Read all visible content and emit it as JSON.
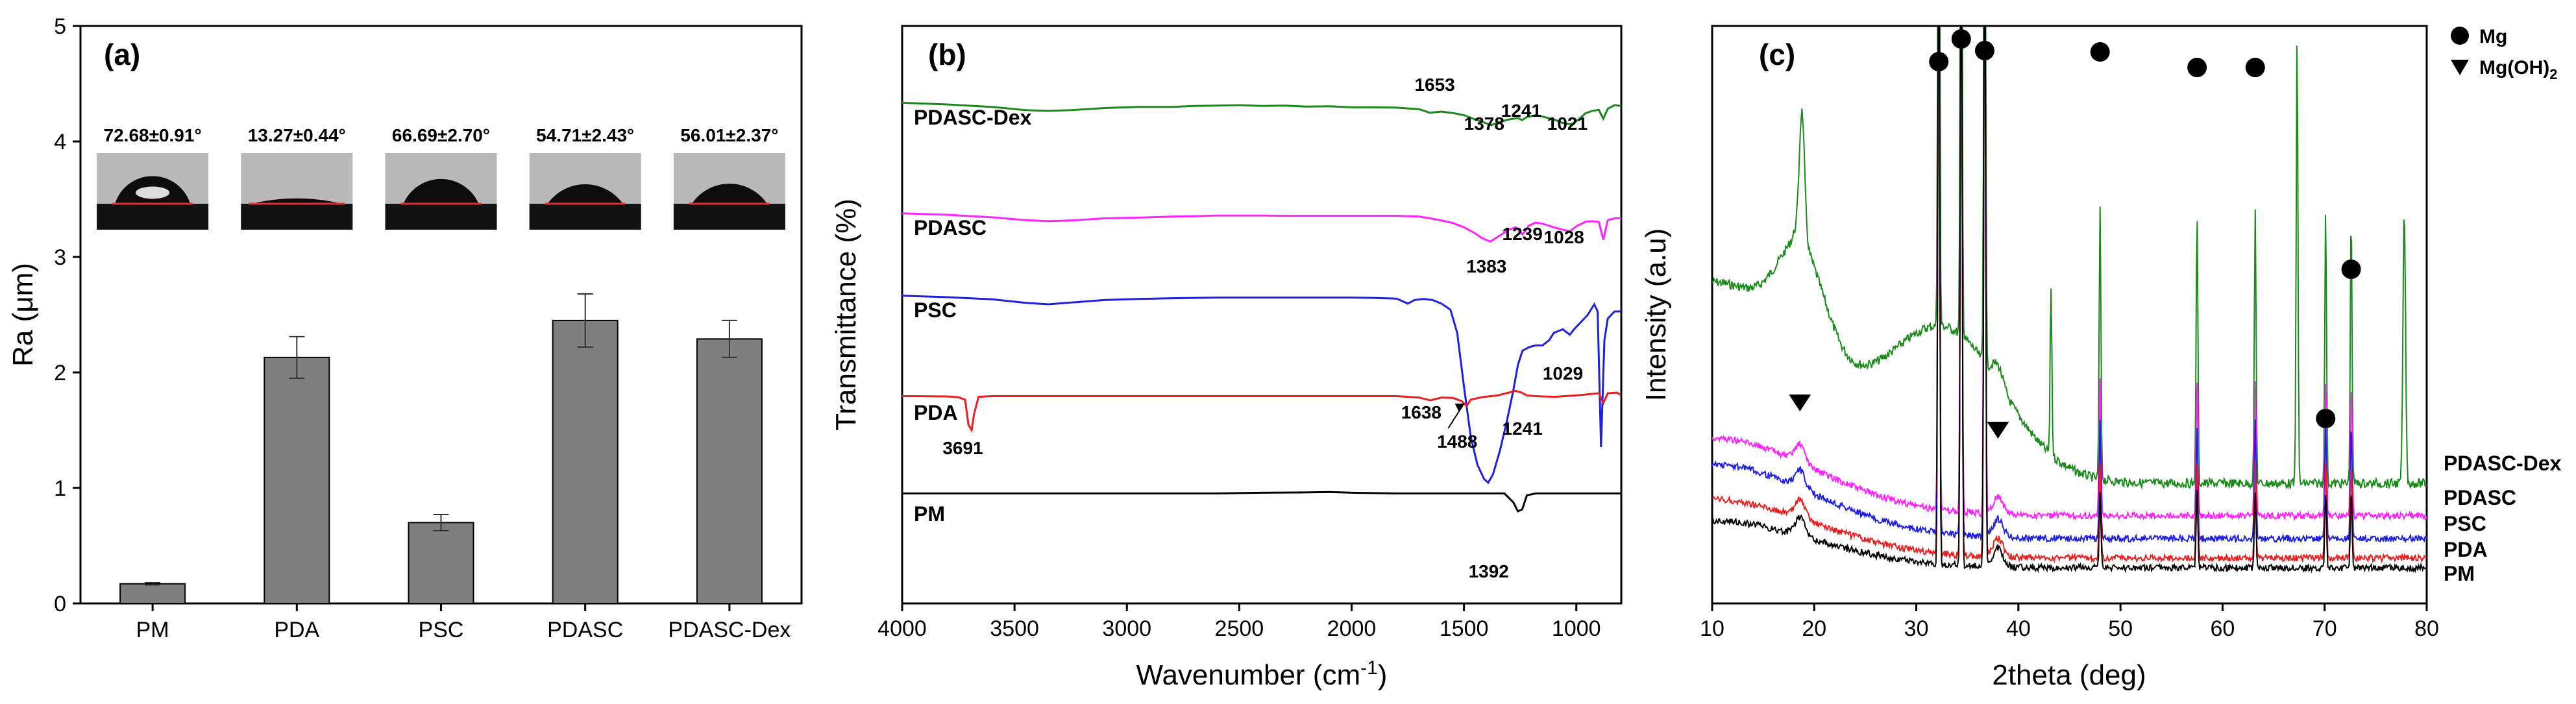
{
  "chart_data": [
    {
      "panel": "(a)",
      "type": "bar",
      "ylabel_main": "Ra (",
      "ylabel_unit": "μm",
      "ylabel_close": ")",
      "ylim": [
        0,
        5
      ],
      "yticks": [
        0,
        1,
        2,
        3,
        4,
        5
      ],
      "categories": [
        "PM",
        "PDA",
        "PSC",
        "PDASC",
        "PDASC-Dex"
      ],
      "values": [
        0.17,
        2.13,
        0.7,
        2.45,
        2.29
      ],
      "errors": [
        0.01,
        0.18,
        0.07,
        0.23,
        0.16
      ],
      "bar_color": "#7f7f7f",
      "contact_angles": [
        "72.68±0.91°",
        "13.27±0.44°",
        "66.69±2.70°",
        "54.71±2.43°",
        "56.01±2.37°"
      ],
      "contact_angle_degrees": [
        72.68,
        13.27,
        66.69,
        54.71,
        56.01
      ]
    },
    {
      "panel": "(b)",
      "type": "line",
      "xlabel_main": "Wavenumber (cm",
      "xlabel_sup": "-1",
      "xlabel_close": ")",
      "ylabel": "Transmittance (%)",
      "xlim": [
        4000,
        800
      ],
      "xticks": [
        4000,
        3500,
        3000,
        2500,
        2000,
        1500,
        1000
      ],
      "series": [
        {
          "name": "PDASC-Dex",
          "color": "#1a8a1a",
          "points": [
            [
              4000,
              0.15
            ],
            [
              3800,
              0.2
            ],
            [
              3600,
              0.27
            ],
            [
              3450,
              0.36
            ],
            [
              3350,
              0.38
            ],
            [
              3250,
              0.36
            ],
            [
              3100,
              0.3
            ],
            [
              2950,
              0.27
            ],
            [
              2800,
              0.27
            ],
            [
              2700,
              0.24
            ],
            [
              2600,
              0.23
            ],
            [
              2500,
              0.22
            ],
            [
              2400,
              0.24
            ],
            [
              2300,
              0.23
            ],
            [
              2200,
              0.26
            ],
            [
              2100,
              0.25
            ],
            [
              2000,
              0.28
            ],
            [
              1900,
              0.28
            ],
            [
              1800,
              0.29
            ],
            [
              1700,
              0.33
            ],
            [
              1653,
              0.43
            ],
            [
              1600,
              0.4
            ],
            [
              1550,
              0.44
            ],
            [
              1500,
              0.5
            ],
            [
              1450,
              0.62
            ],
            [
              1400,
              0.73
            ],
            [
              1378,
              0.78
            ],
            [
              1350,
              0.7
            ],
            [
              1300,
              0.62
            ],
            [
              1260,
              0.58
            ],
            [
              1241,
              0.64
            ],
            [
              1220,
              0.55
            ],
            [
              1180,
              0.5
            ],
            [
              1150,
              0.54
            ],
            [
              1100,
              0.62
            ],
            [
              1060,
              0.72
            ],
            [
              1021,
              0.76
            ],
            [
              990,
              0.62
            ],
            [
              960,
              0.45
            ],
            [
              930,
              0.38
            ],
            [
              900,
              0.35
            ],
            [
              880,
              0.6
            ],
            [
              860,
              0.32
            ],
            [
              830,
              0.22
            ],
            [
              800,
              0.24
            ]
          ],
          "peaks": [
            1653,
            1378,
            1241,
            1021
          ]
        },
        {
          "name": "PDASC",
          "color": "#ff22ff",
          "points": [
            [
              4000,
              0.16
            ],
            [
              3800,
              0.2
            ],
            [
              3600,
              0.27
            ],
            [
              3450,
              0.35
            ],
            [
              3350,
              0.38
            ],
            [
              3250,
              0.36
            ],
            [
              3100,
              0.3
            ],
            [
              2950,
              0.28
            ],
            [
              2800,
              0.25
            ],
            [
              2700,
              0.24
            ],
            [
              2600,
              0.22
            ],
            [
              2500,
              0.22
            ],
            [
              2400,
              0.22
            ],
            [
              2300,
              0.23
            ],
            [
              2200,
              0.23
            ],
            [
              2100,
              0.23
            ],
            [
              2000,
              0.23
            ],
            [
              1900,
              0.23
            ],
            [
              1800,
              0.23
            ],
            [
              1700,
              0.25
            ],
            [
              1650,
              0.3
            ],
            [
              1600,
              0.36
            ],
            [
              1550,
              0.43
            ],
            [
              1500,
              0.55
            ],
            [
              1450,
              0.72
            ],
            [
              1420,
              0.85
            ],
            [
              1383,
              0.95
            ],
            [
              1350,
              0.82
            ],
            [
              1300,
              0.62
            ],
            [
              1270,
              0.55
            ],
            [
              1239,
              0.75
            ],
            [
              1210,
              0.5
            ],
            [
              1180,
              0.42
            ],
            [
              1150,
              0.45
            ],
            [
              1100,
              0.55
            ],
            [
              1060,
              0.62
            ],
            [
              1028,
              0.66
            ],
            [
              1000,
              0.52
            ],
            [
              960,
              0.4
            ],
            [
              930,
              0.38
            ],
            [
              900,
              0.4
            ],
            [
              880,
              0.9
            ],
            [
              860,
              0.35
            ],
            [
              830,
              0.3
            ],
            [
              800,
              0.3
            ]
          ],
          "peaks": [
            1383,
            1239,
            1028
          ]
        },
        {
          "name": "PSC",
          "color": "#1f1fe0",
          "points": [
            [
              4000,
              0.16
            ],
            [
              3800,
              0.2
            ],
            [
              3600,
              0.26
            ],
            [
              3450,
              0.36
            ],
            [
              3350,
              0.4
            ],
            [
              3250,
              0.35
            ],
            [
              3100,
              0.28
            ],
            [
              2950,
              0.25
            ],
            [
              2800,
              0.23
            ],
            [
              2600,
              0.21
            ],
            [
              2400,
              0.21
            ],
            [
              2200,
              0.21
            ],
            [
              2000,
              0.21
            ],
            [
              1900,
              0.22
            ],
            [
              1800,
              0.24
            ],
            [
              1750,
              0.38
            ],
            [
              1720,
              0.28
            ],
            [
              1680,
              0.25
            ],
            [
              1640,
              0.28
            ],
            [
              1600,
              0.38
            ],
            [
              1560,
              0.55
            ],
            [
              1530,
              1.2
            ],
            [
              1500,
              2.7
            ],
            [
              1470,
              4.1
            ],
            [
              1440,
              4.9
            ],
            [
              1410,
              5.3
            ],
            [
              1392,
              5.4
            ],
            [
              1370,
              5.15
            ],
            [
              1340,
              4.5
            ],
            [
              1310,
              3.7
            ],
            [
              1280,
              2.8
            ],
            [
              1260,
              2.1
            ],
            [
              1240,
              1.7
            ],
            [
              1210,
              1.6
            ],
            [
              1180,
              1.55
            ],
            [
              1150,
              1.55
            ],
            [
              1120,
              1.4
            ],
            [
              1100,
              1.2
            ],
            [
              1060,
              1.1
            ],
            [
              1040,
              1.2
            ],
            [
              1029,
              1.25
            ],
            [
              1010,
              1.1
            ],
            [
              980,
              0.9
            ],
            [
              950,
              0.7
            ],
            [
              920,
              0.4
            ],
            [
              905,
              0.6
            ],
            [
              890,
              4.4
            ],
            [
              875,
              1.4
            ],
            [
              860,
              0.8
            ],
            [
              830,
              0.6
            ],
            [
              800,
              0.6
            ]
          ],
          "peaks": [
            1392,
            1029
          ]
        },
        {
          "name": "PDA",
          "color": "#e82020",
          "points": [
            [
              4000,
              0.1
            ],
            [
              3800,
              0.11
            ],
            [
              3750,
              0.13
            ],
            [
              3720,
              0.2
            ],
            [
              3705,
              0.9
            ],
            [
              3691,
              1.05
            ],
            [
              3680,
              0.6
            ],
            [
              3660,
              0.12
            ],
            [
              3600,
              0.1
            ],
            [
              3400,
              0.1
            ],
            [
              3200,
              0.1
            ],
            [
              3000,
              0.1
            ],
            [
              2800,
              0.1
            ],
            [
              2600,
              0.1
            ],
            [
              2400,
              0.1
            ],
            [
              2200,
              0.1
            ],
            [
              2000,
              0.1
            ],
            [
              1800,
              0.1
            ],
            [
              1700,
              0.14
            ],
            [
              1650,
              0.22
            ],
            [
              1638,
              0.2
            ],
            [
              1600,
              0.14
            ],
            [
              1550,
              0.15
            ],
            [
              1510,
              0.24
            ],
            [
              1488,
              0.38
            ],
            [
              1470,
              0.2
            ],
            [
              1420,
              0.13
            ],
            [
              1350,
              0.08
            ],
            [
              1300,
              0.0
            ],
            [
              1270,
              -0.05
            ],
            [
              1241,
              0.01
            ],
            [
              1220,
              0.08
            ],
            [
              1180,
              0.1
            ],
            [
              1100,
              0.12
            ],
            [
              1050,
              0.1
            ],
            [
              1000,
              0.08
            ],
            [
              950,
              0.05
            ],
            [
              900,
              0.02
            ],
            [
              880,
              0.3
            ],
            [
              860,
              0.02
            ],
            [
              820,
              0.0
            ],
            [
              800,
              0.08
            ]
          ],
          "peaks": [
            3691,
            1638,
            1488,
            1241
          ]
        },
        {
          "name": "PM",
          "color": "#000000",
          "points": [
            [
              4000,
              0.1
            ],
            [
              3600,
              0.1
            ],
            [
              3400,
              0.1
            ],
            [
              3200,
              0.1
            ],
            [
              3000,
              0.1
            ],
            [
              2800,
              0.1
            ],
            [
              2600,
              0.1
            ],
            [
              2400,
              0.08
            ],
            [
              2200,
              0.07
            ],
            [
              2100,
              0.06
            ],
            [
              2000,
              0.08
            ],
            [
              1800,
              0.1
            ],
            [
              1600,
              0.1
            ],
            [
              1400,
              0.1
            ],
            [
              1320,
              0.1
            ],
            [
              1280,
              0.35
            ],
            [
              1260,
              0.6
            ],
            [
              1241,
              0.55
            ],
            [
              1220,
              0.15
            ],
            [
              1180,
              0.1
            ],
            [
              1000,
              0.1
            ],
            [
              800,
              0.1
            ]
          ],
          "peaks": []
        }
      ]
    },
    {
      "panel": "(c)",
      "type": "line",
      "xlabel": "2theta (deg)",
      "ylabel": "Intensity (a.u)",
      "xlim": [
        10,
        80
      ],
      "xticks": [
        10,
        20,
        30,
        40,
        50,
        60,
        70,
        80
      ],
      "legend": [
        {
          "symbol": "circle",
          "label_main": "Mg",
          "label_sub": ""
        },
        {
          "symbol": "triangle-down",
          "label_main": "Mg(OH)",
          "label_sub": "2"
        }
      ],
      "mg_peaks_2theta": [
        32.2,
        34.4,
        36.7,
        48.0,
        57.5,
        63.2,
        70.1,
        72.6
      ],
      "mg_oh2_peaks_2theta": [
        18.6,
        38.0
      ],
      "series": [
        {
          "name": "PDASC-Dex",
          "color": "#1a8a1a"
        },
        {
          "name": "PDASC",
          "color": "#ff22ff"
        },
        {
          "name": "PSC",
          "color": "#1f1fe0"
        },
        {
          "name": "PDA",
          "color": "#e82020"
        },
        {
          "name": "PM",
          "color": "#000000"
        }
      ]
    }
  ]
}
